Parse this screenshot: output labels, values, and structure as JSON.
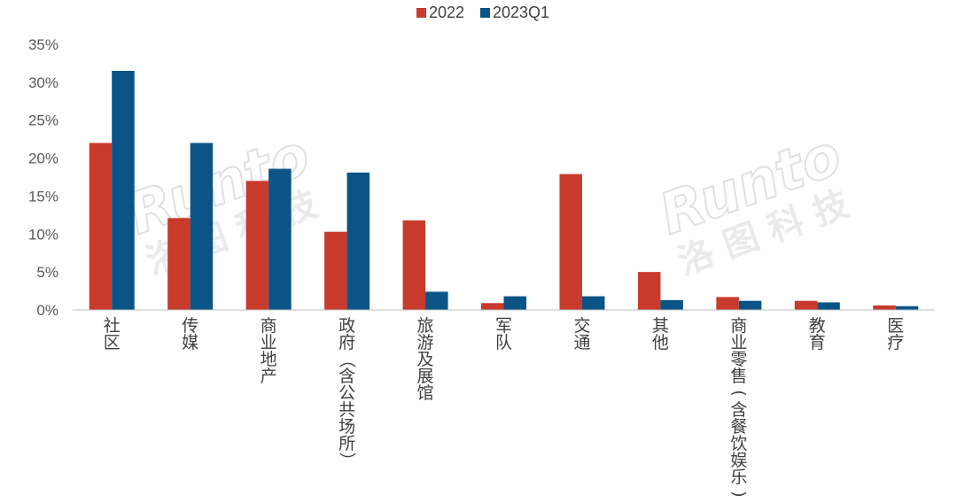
{
  "chart_data": {
    "type": "bar",
    "categories": [
      "社区",
      "传媒",
      "商业地产",
      "政府（含公共场所）",
      "旅游及展馆",
      "军队",
      "交通",
      "其他",
      "商业零售(含餐饮娱乐)",
      "教育",
      "医疗"
    ],
    "series": [
      {
        "name": "2022",
        "color": "#c73a2c",
        "values": [
          22.0,
          12.1,
          17.0,
          10.3,
          11.8,
          0.9,
          17.9,
          5.0,
          1.7,
          1.2,
          0.6
        ]
      },
      {
        "name": "2023Q1",
        "color": "#0b5487",
        "values": [
          31.5,
          22.0,
          18.6,
          18.1,
          2.4,
          1.8,
          1.8,
          1.3,
          1.2,
          1.0,
          0.5
        ]
      }
    ],
    "ylim": [
      0,
      35
    ],
    "yticks": [
      "0%",
      "5%",
      "10%",
      "15%",
      "20%",
      "25%",
      "30%",
      "35%"
    ],
    "title": "",
    "xlabel": "",
    "ylabel": "",
    "legend": "top-center",
    "grid": false
  },
  "watermark": {
    "latin": "Runto",
    "cjk": "洛 图 科 技"
  }
}
